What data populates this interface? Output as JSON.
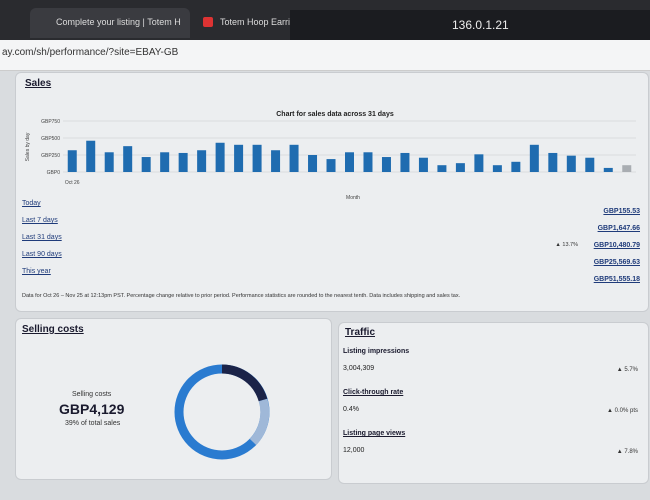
{
  "browser": {
    "tabs": [
      "Complete your listing | Totem H",
      "Totem Hoop Earring"
    ],
    "url": "ay.com/sh/performance/?site=EBAY-GB",
    "overlay_ip": "136.0.1.21"
  },
  "sales": {
    "title": "Sales",
    "chart_data": {
      "type": "bar",
      "title": "Chart for sales data across 31 days",
      "y_label": "Sales by day",
      "x_label": "Month",
      "categories": [
        "Oct 26",
        null,
        null,
        null,
        null,
        null,
        null,
        null,
        null,
        null,
        null,
        null,
        null,
        null,
        null,
        null,
        null,
        null,
        null,
        null,
        null,
        null,
        null,
        null,
        null,
        null,
        null,
        null,
        null,
        null,
        null
      ],
      "values": [
        320,
        460,
        290,
        380,
        220,
        290,
        280,
        320,
        430,
        400,
        400,
        320,
        400,
        250,
        190,
        290,
        290,
        220,
        280,
        210,
        100,
        130,
        260,
        100,
        150,
        400,
        280,
        240,
        210,
        60,
        100
      ],
      "color": "#1f6cb0",
      "ylim": [
        0,
        750
      ],
      "yticks": [
        {
          "value": 0,
          "label": "GBP0"
        },
        {
          "value": 250,
          "label": "GBP250"
        },
        {
          "value": 500,
          "label": "GBP500"
        },
        {
          "value": 750,
          "label": "GBP750"
        }
      ],
      "grid": true
    },
    "periods": [
      {
        "label": "Today",
        "value": "GBP155.53"
      },
      {
        "label": "Last 7 days",
        "value": "GBP1,647.66"
      },
      {
        "label": "Last 31 days",
        "change": "▲ 13.7%",
        "value": "GBP10,480.79"
      },
      {
        "label": "Last 90 days",
        "value": "GBP25,569.63"
      },
      {
        "label": "This year",
        "value": "GBP51,555.18"
      }
    ],
    "note": "Data for Oct 26 – Nov 25 at 12:13pm PST. Percentage change relative to prior period. Performance statistics are rounded to the nearest tenth. Data includes shipping and sales tax."
  },
  "selling_costs": {
    "title": "Selling costs",
    "label": "Selling costs",
    "amount": "GBP4,129",
    "sub": "39% of total sales"
  },
  "traffic": {
    "title": "Traffic",
    "metrics": [
      {
        "label": "Listing impressions",
        "value": "3,004,309",
        "change": "▲ 5.7%"
      },
      {
        "label": "Click-through rate",
        "value": "0.4%",
        "change": "▲ 0.0% pts"
      },
      {
        "label": "Listing page views",
        "value": "12,000",
        "change": "▲ 7.8%"
      }
    ]
  }
}
